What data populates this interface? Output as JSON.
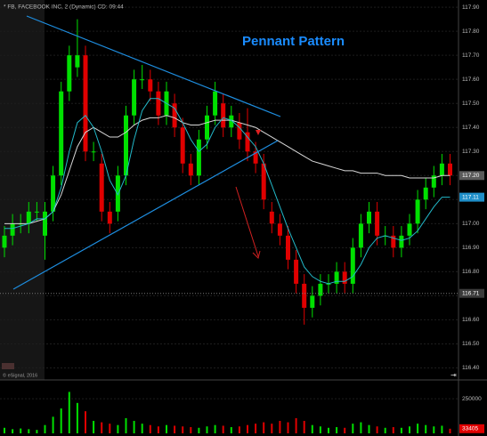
{
  "chart_data": {
    "type": "candlestick",
    "title": "* FB, FACEBOOK INC, 2 (Dynamic) CD: 09:44",
    "annotation": "Pennant Pattern",
    "footer": "© eSignal, 2016",
    "up_color": "#00e000",
    "down_color": "#e00000",
    "grid": true,
    "ylim": [
      116.35,
      117.93
    ],
    "yticks": [
      {
        "value": 117.9,
        "label": "117.90"
      },
      {
        "value": 117.8,
        "label": "117.80"
      },
      {
        "value": 117.7,
        "label": "117.70"
      },
      {
        "value": 117.6,
        "label": "117.60"
      },
      {
        "value": 117.5,
        "label": "117.50"
      },
      {
        "value": 117.4,
        "label": "117.40"
      },
      {
        "value": 117.3,
        "label": "117.30"
      },
      {
        "value": 117.2,
        "label": "117.20"
      },
      {
        "value": 117.1,
        "label": "117.10"
      },
      {
        "value": 117.0,
        "label": "117.00"
      },
      {
        "value": 116.9,
        "label": "116.90"
      },
      {
        "value": 116.8,
        "label": "116.80"
      },
      {
        "value": 116.7,
        "label": "116.70"
      },
      {
        "value": 116.6,
        "label": "116.60"
      },
      {
        "value": 116.5,
        "label": "116.50"
      },
      {
        "value": 116.4,
        "label": "116.40"
      }
    ],
    "open": [
      116.9,
      116.95,
      117.0,
      117.0,
      117.05,
      116.95,
      117.05,
      117.2,
      117.55,
      117.65,
      117.7,
      117.3,
      117.25,
      117.05,
      117.05,
      117.2,
      117.45,
      117.6,
      117.6,
      117.55,
      117.45,
      117.5,
      117.4,
      117.25,
      117.2,
      117.35,
      117.45,
      117.5,
      117.4,
      117.42,
      117.38,
      117.3,
      117.25,
      117.05,
      117.0,
      116.95,
      116.85,
      116.75,
      116.65,
      116.7,
      116.75,
      116.75,
      116.8,
      116.75,
      116.9,
      117.0,
      117.05,
      116.95,
      116.95,
      116.9,
      116.95,
      117.0,
      117.1,
      117.15,
      117.2,
      117.25
    ],
    "high": [
      116.99,
      117.04,
      117.04,
      117.09,
      117.09,
      117.09,
      117.24,
      117.59,
      117.74,
      117.85,
      117.74,
      117.34,
      117.29,
      117.09,
      117.24,
      117.49,
      117.64,
      117.66,
      117.64,
      117.59,
      117.59,
      117.54,
      117.44,
      117.29,
      117.39,
      117.49,
      117.59,
      117.54,
      117.49,
      117.46,
      117.48,
      117.34,
      117.29,
      117.09,
      117.04,
      116.99,
      116.89,
      116.79,
      116.74,
      116.79,
      116.79,
      116.84,
      116.84,
      116.94,
      117.04,
      117.09,
      117.09,
      116.99,
      116.99,
      116.99,
      117.04,
      117.14,
      117.19,
      117.24,
      117.29,
      117.29
    ],
    "low": [
      116.86,
      116.91,
      116.96,
      116.96,
      117.01,
      116.85,
      117.01,
      117.16,
      117.51,
      117.61,
      117.26,
      117.26,
      117.01,
      116.96,
      117.01,
      117.16,
      117.41,
      117.56,
      117.51,
      117.41,
      117.41,
      117.36,
      117.21,
      117.16,
      117.16,
      117.31,
      117.41,
      117.36,
      117.36,
      117.31,
      117.26,
      117.21,
      117.06,
      116.96,
      116.91,
      116.81,
      116.71,
      116.58,
      116.61,
      116.66,
      116.71,
      116.71,
      116.71,
      116.71,
      116.86,
      116.96,
      116.91,
      116.91,
      116.86,
      116.86,
      116.91,
      116.96,
      117.06,
      117.11,
      117.16,
      117.16
    ],
    "close": [
      116.95,
      117.0,
      117.0,
      117.05,
      117.05,
      117.05,
      117.2,
      117.55,
      117.7,
      117.7,
      117.3,
      117.3,
      117.05,
      117.0,
      117.2,
      117.45,
      117.6,
      117.6,
      117.55,
      117.45,
      117.55,
      117.4,
      117.25,
      117.2,
      117.35,
      117.45,
      117.55,
      117.4,
      117.45,
      117.35,
      117.3,
      117.25,
      117.1,
      117.0,
      116.95,
      116.85,
      116.75,
      116.65,
      116.7,
      116.75,
      116.75,
      116.8,
      116.75,
      116.9,
      117.0,
      117.05,
      116.95,
      116.95,
      116.9,
      116.95,
      117.0,
      117.1,
      117.15,
      117.2,
      117.25,
      117.2
    ],
    "moving_averages": [
      {
        "color": "#d8d8d8",
        "values": [
          117.0,
          117.0,
          117.0,
          117.0,
          117.01,
          117.02,
          117.05,
          117.12,
          117.22,
          117.32,
          117.38,
          117.4,
          117.38,
          117.36,
          117.36,
          117.38,
          117.41,
          117.43,
          117.44,
          117.44,
          117.45,
          117.44,
          117.42,
          117.41,
          117.41,
          117.42,
          117.43,
          117.43,
          117.43,
          117.42,
          117.41,
          117.4,
          117.38,
          117.36,
          117.34,
          117.32,
          117.3,
          117.28,
          117.26,
          117.25,
          117.24,
          117.23,
          117.22,
          117.22,
          117.21,
          117.21,
          117.21,
          117.2,
          117.2,
          117.2,
          117.19,
          117.19,
          117.19,
          117.19,
          117.2,
          117.2
        ]
      },
      {
        "color": "#22b8c8",
        "values": [
          116.98,
          116.98,
          116.99,
          117.0,
          117.02,
          117.02,
          117.05,
          117.15,
          117.3,
          117.42,
          117.45,
          117.4,
          117.3,
          117.18,
          117.12,
          117.2,
          117.35,
          117.47,
          117.52,
          117.52,
          117.5,
          117.48,
          117.42,
          117.35,
          117.3,
          117.33,
          117.4,
          117.44,
          117.43,
          117.4,
          117.36,
          117.32,
          117.25,
          117.16,
          117.07,
          116.98,
          116.9,
          116.82,
          116.78,
          116.76,
          116.75,
          116.76,
          116.76,
          116.78,
          116.83,
          116.9,
          116.94,
          116.95,
          116.94,
          116.93,
          116.94,
          116.97,
          117.02,
          117.07,
          117.11,
          117.11
        ]
      }
    ],
    "price_markers": [
      {
        "value": 117.2,
        "label": "117.20",
        "color": "#5a5a5a"
      },
      {
        "value": 117.11,
        "label": "117.11",
        "color": "#1e8ec8"
      },
      {
        "value": 116.71,
        "label": "116.71",
        "color": "#3a3a3a"
      }
    ],
    "volume": [
      40000,
      30000,
      35000,
      30000,
      25000,
      60000,
      120000,
      180000,
      300000,
      220000,
      160000,
      90000,
      80000,
      70000,
      60000,
      110000,
      90000,
      70000,
      60000,
      50000,
      60000,
      55000,
      50000,
      45000,
      40000,
      50000,
      60000,
      55000,
      45000,
      50000,
      60000,
      70000,
      80000,
      70000,
      90000,
      80000,
      110000,
      90000,
      60000,
      50000,
      40000,
      45000,
      40000,
      70000,
      80000,
      60000,
      50000,
      40000,
      45000,
      40000,
      50000,
      70000,
      60000,
      50000,
      55000,
      33405
    ],
    "vlim": [
      0,
      380000
    ],
    "vticks": [
      250000
    ]
  }
}
